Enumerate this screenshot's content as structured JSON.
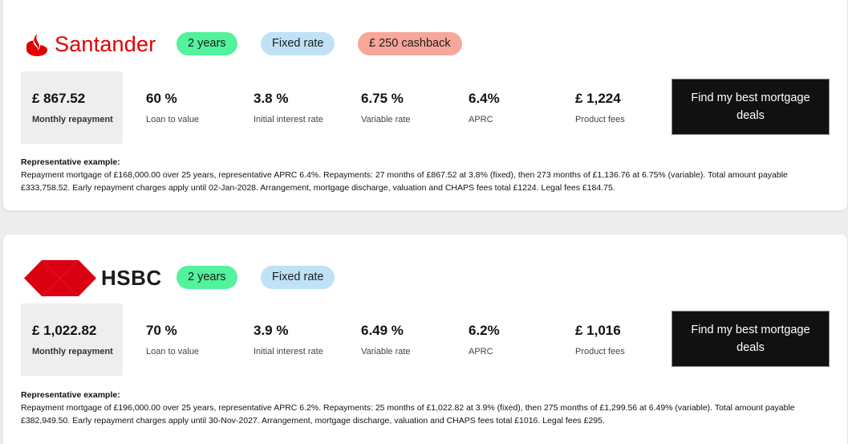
{
  "colors": {
    "santander_red": "#e00000",
    "hsbc_red": "#db0011",
    "tag_years": "#53f29c",
    "tag_fixed": "#bfe2f7",
    "tag_cashback": "#f7a79a",
    "cta_bg": "#111111"
  },
  "deals": [
    {
      "lender": "Santander",
      "logo_icon": "santander-flame-icon",
      "tags": [
        "2 years",
        "Fixed rate",
        "£ 250 cashback"
      ],
      "monthly_repayment": "£ 867.52",
      "monthly_repayment_label": "Monthly repayment",
      "ltv": "60 %",
      "ltv_label": "Loan to value",
      "initial_rate": "3.8 %",
      "initial_rate_label": "Initial interest rate",
      "variable_rate": "6.75 %",
      "variable_rate_label": "Variable rate",
      "aprc": "6.4%",
      "aprc_label": "APRC",
      "product_fees": "£ 1,224",
      "product_fees_label": "Product fees",
      "cta_label": "Find my best mortgage deals",
      "rep_title": "Representative example:",
      "rep_text": "Repayment mortgage of £168,000.00 over 25 years, representative APRC 6.4%. Repayments: 27 months of £867.52 at 3.8% (fixed), then 273 months of £1,136.76 at 6.75% (variable). Total amount payable £333,758.52. Early repayment charges apply until 02-Jan-2028. Arrangement, mortgage discharge, valuation and CHAPS fees total £1224. Legal fees £184.75."
    },
    {
      "lender": "HSBC",
      "logo_icon": "hsbc-hexagon-icon",
      "tags": [
        "2 years",
        "Fixed rate"
      ],
      "monthly_repayment": "£ 1,022.82",
      "monthly_repayment_label": "Monthly repayment",
      "ltv": "70 %",
      "ltv_label": "Loan to value",
      "initial_rate": "3.9 %",
      "initial_rate_label": "Initial interest rate",
      "variable_rate": "6.49 %",
      "variable_rate_label": "Variable rate",
      "aprc": "6.2%",
      "aprc_label": "APRC",
      "product_fees": "£ 1,016",
      "product_fees_label": "Product fees",
      "cta_label": "Find my best mortgage deals",
      "rep_title": "Representative example:",
      "rep_text": "Repayment mortgage of £196,000.00 over 25 years, representative APRC 6.2%. Repayments: 25 months of £1,022.82 at 3.9% (fixed), then 275 months of £1,299.56 at 6.49% (variable). Total amount payable £382,949.50. Early repayment charges apply until 30-Nov-2027. Arrangement, mortgage discharge, valuation and CHAPS fees total £1016. Legal fees £295."
    }
  ]
}
